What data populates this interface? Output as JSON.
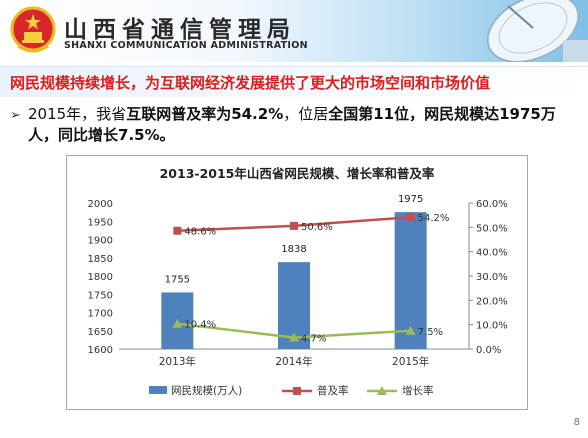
{
  "header": {
    "org_cn": "山西省通信管理局",
    "org_en": "SHANXI COMMUNICATION ADMINISTRATION"
  },
  "headline": "网民规模持续增长，为互联网经济发展提供了更大的市场空间和市场价值",
  "bullet": {
    "p1": "2015年，我省",
    "b1": "互联网普及率为54.2%",
    "p2": "，位居",
    "b2": "全国第11位，网民规模达1975万人，同比增长7.5%。"
  },
  "page_number": "8",
  "colors": {
    "bar": "#4f81bd",
    "penetration": "#c0504d",
    "growth": "#9bbb59",
    "headline": "#d81e1e"
  },
  "chart_data": {
    "type": "bar",
    "title": "2013-2015年山西省网民规模、增长率和普及率",
    "categories": [
      "2013年",
      "2014年",
      "2015年"
    ],
    "ylim_left": [
      1600,
      2000
    ],
    "yticks_left": [
      "1600",
      "1650",
      "1700",
      "1750",
      "1800",
      "1850",
      "1900",
      "1950",
      "2000"
    ],
    "ylim_right": [
      0,
      60
    ],
    "yticks_right": [
      "0.0%",
      "10.0%",
      "20.0%",
      "30.0%",
      "40.0%",
      "50.0%",
      "60.0%"
    ],
    "series": [
      {
        "name": "网民规模(万人)",
        "kind": "bar",
        "axis": "left",
        "values": [
          1755,
          1838,
          1975
        ],
        "labels": [
          "1755",
          "1838",
          "1975"
        ]
      },
      {
        "name": "普及率",
        "kind": "line",
        "axis": "right",
        "values": [
          48.6,
          50.6,
          54.2
        ],
        "labels": [
          "48.6%",
          "50.6%",
          "54.2%"
        ]
      },
      {
        "name": "增长率",
        "kind": "line",
        "axis": "right",
        "values": [
          10.4,
          4.7,
          7.5
        ],
        "labels": [
          "10.4%",
          "4.7%",
          "7.5%"
        ]
      }
    ],
    "grid": false,
    "legend": "bottom"
  }
}
